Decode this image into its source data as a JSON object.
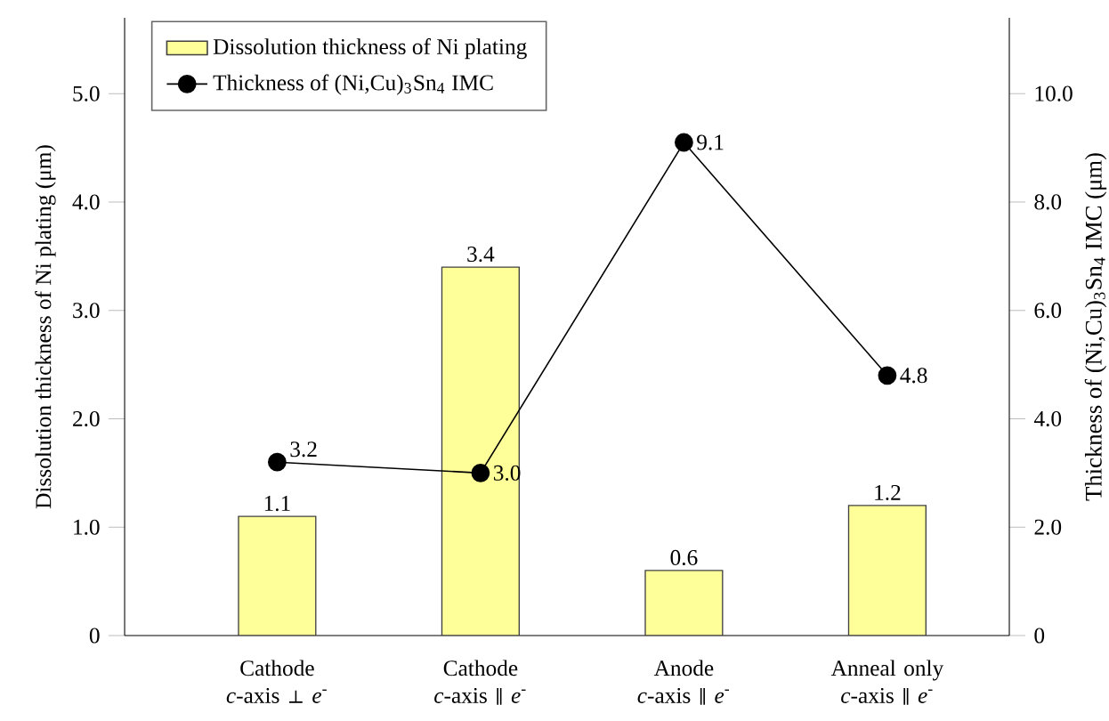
{
  "chart_data": {
    "type": "bar",
    "categories": [
      "Cathode *c*-axis ⊥ *e*$^{-}$",
      "Cathode *c*-axis ∥ *e*$^{-}$",
      "Anode *c*-axis ∥ *e*$^{-}$",
      "Anneal only *c*-axis ∥ *e*$^{-}$"
    ],
    "series": [
      {
        "name": "Dissolution thickness of Ni plating",
        "color": "#ffff99",
        "values": [
          1.1,
          3.4,
          0.6,
          1.2
        ],
        "value_labels": [
          "1.1",
          "3.4",
          "0.6",
          "1.2"
        ]
      },
      {
        "type": "line",
        "name": "Thickness of (Ni,Cu)$_{3}$Sn$_{4}$ IMC",
        "color": "#000000",
        "axis": "y2",
        "values": [
          3.2,
          3.0,
          9.1,
          4.8
        ],
        "value_labels": [
          "3.2",
          "3.0",
          "9.1",
          "4.8"
        ]
      }
    ],
    "ylabel": "Dissolution thickness of Ni plating (μm)",
    "y2label": "Thickness of (Ni,Cu)$_{3}$Sn$_{4}$ IMC (μm)",
    "ylim": [
      0,
      5.7
    ],
    "yticks": [
      0,
      {
        "value": 1,
        "label": "1.0"
      },
      {
        "value": 2,
        "label": "2.0"
      },
      {
        "value": 3,
        "label": "3.0"
      },
      {
        "value": 4,
        "label": "4.0"
      },
      {
        "value": 5,
        "label": "5.0"
      }
    ],
    "y2lim": [
      0,
      11.4
    ],
    "y2ticks": [
      0,
      {
        "value": 2,
        "label": "2.0"
      },
      {
        "value": 4,
        "label": "4.0"
      },
      {
        "value": 6,
        "label": "6.0"
      },
      {
        "value": 8,
        "label": "8.0"
      },
      {
        "value": 10,
        "label": "10.0"
      }
    ],
    "legend": "top left",
    "marker": "circle"
  }
}
